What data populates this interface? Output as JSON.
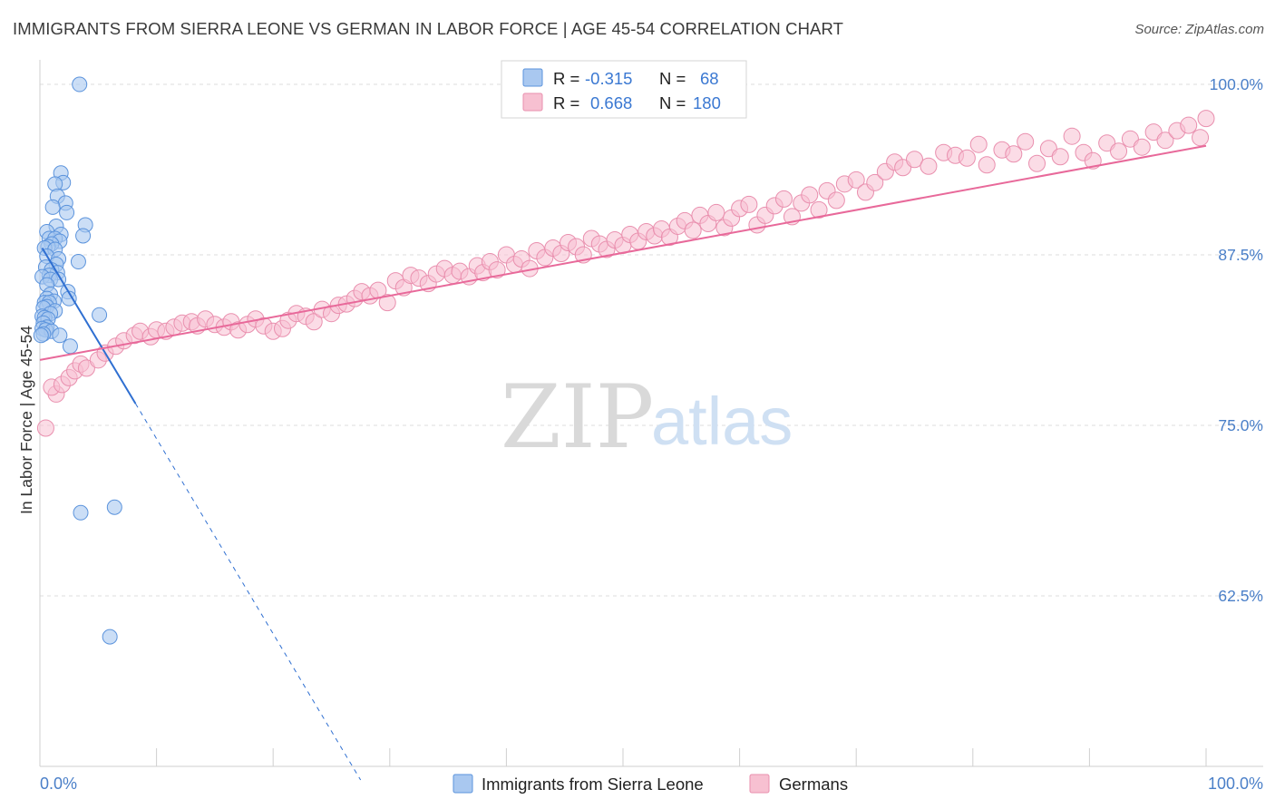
{
  "header": {
    "title": "IMMIGRANTS FROM SIERRA LEONE VS GERMAN IN LABOR FORCE | AGE 45-54 CORRELATION CHART",
    "source": "Source: ZipAtlas.com"
  },
  "watermark": {
    "zip": "ZIP",
    "atlas": "atlas"
  },
  "colors": {
    "blue_fill": "#a9c8f0",
    "blue_stroke": "#5b93dc",
    "blue_line": "#2f6fd1",
    "pink_fill": "#f7c0d1",
    "pink_stroke": "#e98fae",
    "pink_line": "#e8699a",
    "grid": "#dedede",
    "axis_tick_text": "#4a7fc8"
  },
  "chart_data": {
    "type": "scatter",
    "title": "IMMIGRANTS FROM SIERRA LEONE VS GERMAN IN LABOR FORCE | AGE 45-54 CORRELATION CHART",
    "xlabel": "",
    "ylabel": "In Labor Force | Age 45-54",
    "xlim": [
      0,
      100
    ],
    "ylim": [
      50,
      101
    ],
    "x_tick_labels": [
      "0.0%",
      "100.0%"
    ],
    "y_ticks": [
      62.5,
      75.0,
      87.5,
      100.0
    ],
    "y_tick_labels": [
      "62.5%",
      "75.0%",
      "87.5%",
      "100.0%"
    ],
    "grid": true,
    "legend_stats": [
      {
        "r_label": "R =",
        "r_value": "-0.315",
        "n_label": "N =",
        "n_value": "68"
      },
      {
        "r_label": "R =",
        "r_value": "0.668",
        "n_label": "N =",
        "n_value": "180"
      }
    ],
    "series": [
      {
        "name": "Immigrants from Sierra Leone",
        "color": "blue",
        "r": -0.315,
        "n": 68,
        "trend": {
          "x_start": 0.2,
          "y_start": 88.0,
          "x_end": 8.2,
          "y_end": 76.6,
          "dash_x_end": 27.5,
          "dash_y_end": 49.0
        },
        "points": [
          [
            3.4,
            100.0
          ],
          [
            1.8,
            93.5
          ],
          [
            2.0,
            92.8
          ],
          [
            1.3,
            92.7
          ],
          [
            1.5,
            91.8
          ],
          [
            2.2,
            91.3
          ],
          [
            1.1,
            91.0
          ],
          [
            2.3,
            90.6
          ],
          [
            3.9,
            89.7
          ],
          [
            1.4,
            89.6
          ],
          [
            0.6,
            89.2
          ],
          [
            1.8,
            89.0
          ],
          [
            3.7,
            88.9
          ],
          [
            0.8,
            88.7
          ],
          [
            1.3,
            88.7
          ],
          [
            1.7,
            88.5
          ],
          [
            1.0,
            88.3
          ],
          [
            0.7,
            88.1
          ],
          [
            0.4,
            88.0
          ],
          [
            1.3,
            87.9
          ],
          [
            0.6,
            87.4
          ],
          [
            1.6,
            87.2
          ],
          [
            3.3,
            87.0
          ],
          [
            1.4,
            86.8
          ],
          [
            0.5,
            86.6
          ],
          [
            1.0,
            86.4
          ],
          [
            1.5,
            86.2
          ],
          [
            0.8,
            86.0
          ],
          [
            0.2,
            85.9
          ],
          [
            0.9,
            85.7
          ],
          [
            1.6,
            85.7
          ],
          [
            0.6,
            85.3
          ],
          [
            2.4,
            84.8
          ],
          [
            0.9,
            84.6
          ],
          [
            0.6,
            84.3
          ],
          [
            2.5,
            84.3
          ],
          [
            1.2,
            84.1
          ],
          [
            0.4,
            84.0
          ],
          [
            0.8,
            84.0
          ],
          [
            0.6,
            83.7
          ],
          [
            0.3,
            83.6
          ],
          [
            1.3,
            83.4
          ],
          [
            0.9,
            83.2
          ],
          [
            5.1,
            83.1
          ],
          [
            0.2,
            83.0
          ],
          [
            0.4,
            82.9
          ],
          [
            0.7,
            82.8
          ],
          [
            0.3,
            82.5
          ],
          [
            0.6,
            82.2
          ],
          [
            0.2,
            82.1
          ],
          [
            0.5,
            82.0
          ],
          [
            1.0,
            81.9
          ],
          [
            0.3,
            81.7
          ],
          [
            1.7,
            81.6
          ],
          [
            0.1,
            81.6
          ],
          [
            2.6,
            80.8
          ],
          [
            6.4,
            69.0
          ],
          [
            3.5,
            68.6
          ],
          [
            6.0,
            59.5
          ]
        ]
      },
      {
        "name": "Germans",
        "color": "pink",
        "r": 0.668,
        "n": 180,
        "trend": {
          "x_start": 0.0,
          "y_start": 79.8,
          "x_end": 100.0,
          "y_end": 95.5
        },
        "points": [
          [
            0.5,
            74.8
          ],
          [
            1.4,
            77.3
          ],
          [
            1.0,
            77.8
          ],
          [
            1.9,
            78.0
          ],
          [
            2.5,
            78.5
          ],
          [
            3.0,
            79.0
          ],
          [
            3.5,
            79.5
          ],
          [
            4.0,
            79.2
          ],
          [
            5.0,
            79.8
          ],
          [
            5.6,
            80.3
          ],
          [
            6.5,
            80.8
          ],
          [
            7.2,
            81.2
          ],
          [
            8.1,
            81.6
          ],
          [
            8.6,
            81.9
          ],
          [
            9.5,
            81.5
          ],
          [
            10.0,
            82.0
          ],
          [
            10.8,
            81.9
          ],
          [
            11.5,
            82.2
          ],
          [
            12.2,
            82.5
          ],
          [
            13.0,
            82.6
          ],
          [
            13.5,
            82.3
          ],
          [
            14.2,
            82.8
          ],
          [
            15.0,
            82.4
          ],
          [
            15.8,
            82.2
          ],
          [
            16.4,
            82.6
          ],
          [
            17.0,
            82.0
          ],
          [
            17.8,
            82.4
          ],
          [
            18.5,
            82.8
          ],
          [
            19.2,
            82.3
          ],
          [
            20.0,
            81.9
          ],
          [
            20.8,
            82.1
          ],
          [
            21.3,
            82.7
          ],
          [
            22.0,
            83.2
          ],
          [
            22.8,
            83.0
          ],
          [
            23.5,
            82.6
          ],
          [
            24.2,
            83.5
          ],
          [
            25.0,
            83.2
          ],
          [
            25.6,
            83.8
          ],
          [
            26.3,
            83.9
          ],
          [
            27.0,
            84.3
          ],
          [
            27.6,
            84.8
          ],
          [
            28.3,
            84.5
          ],
          [
            29.0,
            84.9
          ],
          [
            29.8,
            84.0
          ],
          [
            30.5,
            85.6
          ],
          [
            31.2,
            85.1
          ],
          [
            31.8,
            86.0
          ],
          [
            32.5,
            85.8
          ],
          [
            33.3,
            85.4
          ],
          [
            34.0,
            86.1
          ],
          [
            34.7,
            86.5
          ],
          [
            35.4,
            86.0
          ],
          [
            36.0,
            86.3
          ],
          [
            36.8,
            85.9
          ],
          [
            37.5,
            86.7
          ],
          [
            38.0,
            86.2
          ],
          [
            38.6,
            87.0
          ],
          [
            39.2,
            86.4
          ],
          [
            40.0,
            87.5
          ],
          [
            40.7,
            86.8
          ],
          [
            41.3,
            87.2
          ],
          [
            42.0,
            86.5
          ],
          [
            42.6,
            87.8
          ],
          [
            43.3,
            87.3
          ],
          [
            44.0,
            88.0
          ],
          [
            44.7,
            87.6
          ],
          [
            45.3,
            88.4
          ],
          [
            46.0,
            88.1
          ],
          [
            46.6,
            87.5
          ],
          [
            47.3,
            88.7
          ],
          [
            48.0,
            88.3
          ],
          [
            48.6,
            87.9
          ],
          [
            49.3,
            88.6
          ],
          [
            50.0,
            88.2
          ],
          [
            50.6,
            89.0
          ],
          [
            51.3,
            88.5
          ],
          [
            52.0,
            89.2
          ],
          [
            52.7,
            88.9
          ],
          [
            53.3,
            89.4
          ],
          [
            54.0,
            88.8
          ],
          [
            54.7,
            89.6
          ],
          [
            55.3,
            90.0
          ],
          [
            56.0,
            89.3
          ],
          [
            56.6,
            90.4
          ],
          [
            57.3,
            89.8
          ],
          [
            58.0,
            90.6
          ],
          [
            58.7,
            89.5
          ],
          [
            59.3,
            90.2
          ],
          [
            60.0,
            90.9
          ],
          [
            60.8,
            91.2
          ],
          [
            61.5,
            89.7
          ],
          [
            62.2,
            90.4
          ],
          [
            63.0,
            91.1
          ],
          [
            63.8,
            91.6
          ],
          [
            64.5,
            90.3
          ],
          [
            65.3,
            91.3
          ],
          [
            66.0,
            91.9
          ],
          [
            66.8,
            90.8
          ],
          [
            67.5,
            92.2
          ],
          [
            68.3,
            91.5
          ],
          [
            69.0,
            92.7
          ],
          [
            70.0,
            93.0
          ],
          [
            70.8,
            92.1
          ],
          [
            71.6,
            92.8
          ],
          [
            72.5,
            93.6
          ],
          [
            73.3,
            94.3
          ],
          [
            74.0,
            93.9
          ],
          [
            75.0,
            94.5
          ],
          [
            76.2,
            94.0
          ],
          [
            77.5,
            95.0
          ],
          [
            78.5,
            94.8
          ],
          [
            79.5,
            94.6
          ],
          [
            80.5,
            95.6
          ],
          [
            81.2,
            94.1
          ],
          [
            82.5,
            95.2
          ],
          [
            83.5,
            94.9
          ],
          [
            84.5,
            95.8
          ],
          [
            85.5,
            94.2
          ],
          [
            86.5,
            95.3
          ],
          [
            87.5,
            94.7
          ],
          [
            88.5,
            96.2
          ],
          [
            89.5,
            95.0
          ],
          [
            90.3,
            94.4
          ],
          [
            91.5,
            95.7
          ],
          [
            92.5,
            95.1
          ],
          [
            93.5,
            96.0
          ],
          [
            94.5,
            95.4
          ],
          [
            95.5,
            96.5
          ],
          [
            96.5,
            95.9
          ],
          [
            97.5,
            96.6
          ],
          [
            98.5,
            97.0
          ],
          [
            99.5,
            96.1
          ],
          [
            100.0,
            97.5
          ]
        ]
      }
    ]
  },
  "bottom_legend": {
    "items": [
      "Immigrants from Sierra Leone",
      "Germans"
    ]
  }
}
